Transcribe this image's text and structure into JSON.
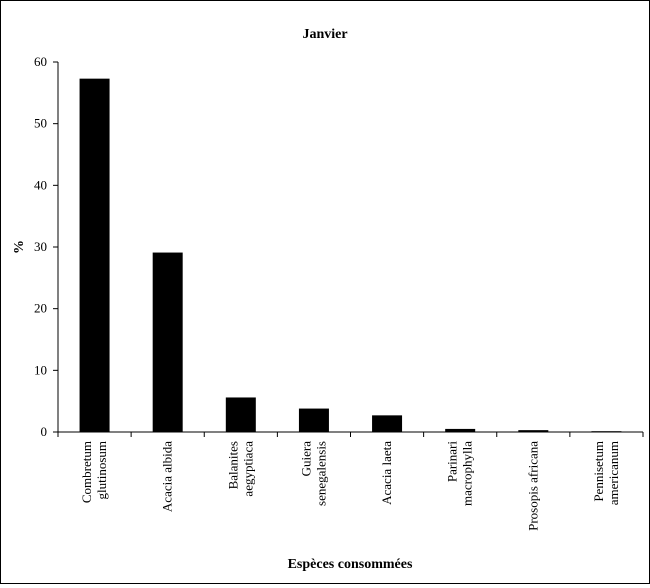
{
  "chart_data": {
    "type": "bar",
    "title": "Janvier",
    "xlabel": "Espèces consommées",
    "ylabel": "%",
    "ylim": [
      0,
      60
    ],
    "yticks": [
      0,
      10,
      20,
      30,
      40,
      50,
      60
    ],
    "grid": false,
    "legend": "none",
    "bar_color": "#000000",
    "categories": [
      [
        "Combretum",
        "glutinosum"
      ],
      [
        "Acacia albida"
      ],
      [
        "Balanites",
        "aegyptiaca"
      ],
      [
        "Guiera",
        "senegalensis"
      ],
      [
        "Acacia laeta"
      ],
      [
        "Parinari",
        "macrophylla"
      ],
      [
        "Prosopis africana"
      ],
      [
        "Pennisetum",
        "americanum"
      ]
    ],
    "values": [
      57.3,
      29.1,
      5.6,
      3.8,
      2.7,
      0.5,
      0.3,
      0.1
    ]
  }
}
